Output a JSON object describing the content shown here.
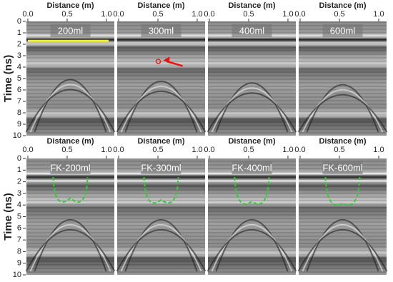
{
  "rows": [
    {
      "ylabel": "Time (ns)",
      "ylim": [
        0,
        10
      ],
      "yticks": [
        0,
        1,
        2,
        3,
        4,
        5,
        6,
        7,
        8,
        9,
        10
      ],
      "panels": [
        {
          "title": "200ml",
          "xlabel": "Distance (m)",
          "xlim": [
            0,
            1.1
          ],
          "xticks": [
            {
              "value": 0,
              "label": "0.0"
            },
            0.5,
            {
              "value": 1,
              "label": "1.0"
            }
          ]
        },
        {
          "title": "300ml",
          "xlabel": "Distance (m)",
          "xlim": [
            0,
            1.1
          ],
          "xticks": [
            {
              "value": 0,
              "label": "0.0"
            },
            0.5,
            {
              "value": 1,
              "label": "1.0"
            }
          ]
        },
        {
          "title": "400ml",
          "xlabel": "Distance (m)",
          "xlim": [
            0,
            1.1
          ],
          "xticks": [
            {
              "value": 0,
              "label": "0.0"
            },
            0.5,
            {
              "value": 1,
              "label": "1.0"
            }
          ]
        },
        {
          "title": "600ml",
          "xlabel": "Distance (m)",
          "xlim": [
            0,
            1.1
          ],
          "xticks": [
            {
              "value": 0,
              "label": "0.0"
            },
            0.5,
            {
              "value": 1,
              "label": "1.0"
            }
          ]
        }
      ]
    },
    {
      "ylabel": "Time (ns)",
      "ylim": [
        0,
        10
      ],
      "yticks": [
        0,
        1,
        2,
        3,
        4,
        5,
        6,
        7,
        8,
        9,
        10
      ],
      "panels": [
        {
          "title": "FK-200ml",
          "xlabel": "Distance (m)",
          "xlim": [
            0,
            1.1
          ],
          "xticks": [
            {
              "value": 0,
              "label": "0.0"
            },
            0.5,
            {
              "value": 1,
              "label": "1.0"
            }
          ]
        },
        {
          "title": "FK-300ml",
          "xlabel": "Distance (m)",
          "xlim": [
            0,
            1.1
          ],
          "xticks": [
            {
              "value": 0,
              "label": "0.0"
            },
            0.5,
            {
              "value": 1,
              "label": "1.0"
            }
          ]
        },
        {
          "title": "FK-400ml",
          "xlabel": "Distance (m)",
          "xlim": [
            0,
            1.1
          ],
          "xticks": [
            {
              "value": 0,
              "label": "0.0"
            },
            0.5,
            {
              "value": 1,
              "label": "1.0"
            }
          ]
        },
        {
          "title": "FK-600ml",
          "xlabel": "Distance (m)",
          "xlim": [
            0,
            1.1
          ],
          "xticks": [
            {
              "value": 0,
              "label": "0.0"
            },
            0.5,
            {
              "value": 1,
              "label": "1.0"
            }
          ]
        }
      ]
    }
  ]
}
